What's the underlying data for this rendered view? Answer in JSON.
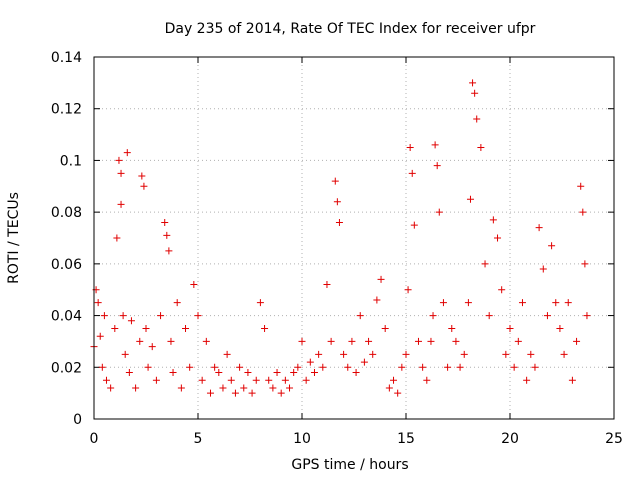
{
  "chart_data": {
    "type": "scatter",
    "title": "Day 235 of 2014, Rate Of TEC Index for receiver ufpr",
    "xlabel": "GPS time / hours",
    "ylabel": "ROTI / TECUs",
    "xlim": [
      0,
      25
    ],
    "ylim": [
      0,
      0.14
    ],
    "xticks": [
      0,
      5,
      10,
      15,
      20,
      25
    ],
    "yticks": [
      0,
      0.02,
      0.04,
      0.06,
      0.08,
      0.1,
      0.12,
      0.14
    ],
    "xtick_labels": [
      "0",
      "5",
      "10",
      "15",
      "20",
      "25"
    ],
    "ytick_labels": [
      "0",
      "0.02",
      "0.04",
      "0.06",
      "0.08",
      "0.1",
      "0.12",
      "0.14"
    ],
    "grid": true,
    "marker": "+",
    "color": "#e00000",
    "series": [
      {
        "name": "ROTI",
        "x": [
          0.0,
          0.1,
          0.2,
          0.3,
          0.4,
          0.5,
          0.6,
          0.8,
          1.0,
          1.1,
          1.2,
          1.3,
          1.3,
          1.4,
          1.5,
          1.6,
          1.7,
          1.8,
          2.0,
          2.2,
          2.3,
          2.4,
          2.5,
          2.6,
          2.8,
          3.0,
          3.2,
          3.4,
          3.5,
          3.6,
          3.7,
          3.8,
          4.0,
          4.2,
          4.4,
          4.6,
          4.8,
          5.0,
          5.2,
          5.4,
          5.6,
          5.8,
          6.0,
          6.2,
          6.4,
          6.6,
          6.8,
          7.0,
          7.2,
          7.4,
          7.6,
          7.8,
          8.0,
          8.2,
          8.4,
          8.6,
          8.8,
          9.0,
          9.2,
          9.4,
          9.6,
          9.8,
          10.0,
          10.2,
          10.4,
          10.6,
          10.8,
          11.0,
          11.2,
          11.4,
          11.6,
          11.7,
          11.8,
          12.0,
          12.2,
          12.4,
          12.6,
          12.8,
          13.0,
          13.2,
          13.4,
          13.6,
          13.8,
          14.0,
          14.2,
          14.4,
          14.6,
          14.8,
          15.0,
          15.1,
          15.2,
          15.3,
          15.4,
          15.6,
          15.8,
          16.0,
          16.2,
          16.3,
          16.4,
          16.5,
          16.6,
          16.8,
          17.0,
          17.2,
          17.4,
          17.6,
          17.8,
          18.0,
          18.1,
          18.2,
          18.3,
          18.4,
          18.6,
          18.8,
          19.0,
          19.2,
          19.4,
          19.6,
          19.8,
          20.0,
          20.2,
          20.4,
          20.6,
          20.8,
          21.0,
          21.2,
          21.4,
          21.6,
          21.8,
          22.0,
          22.2,
          22.4,
          22.6,
          22.8,
          23.0,
          23.2,
          23.4,
          23.5,
          23.6,
          23.7
        ],
        "y": [
          0.028,
          0.05,
          0.045,
          0.032,
          0.02,
          0.04,
          0.015,
          0.012,
          0.035,
          0.07,
          0.1,
          0.095,
          0.083,
          0.04,
          0.025,
          0.103,
          0.018,
          0.038,
          0.012,
          0.03,
          0.094,
          0.09,
          0.035,
          0.02,
          0.028,
          0.015,
          0.04,
          0.076,
          0.071,
          0.065,
          0.03,
          0.018,
          0.045,
          0.012,
          0.035,
          0.02,
          0.052,
          0.04,
          0.015,
          0.03,
          0.01,
          0.02,
          0.018,
          0.012,
          0.025,
          0.015,
          0.01,
          0.02,
          0.012,
          0.018,
          0.01,
          0.015,
          0.045,
          0.035,
          0.015,
          0.012,
          0.018,
          0.01,
          0.015,
          0.012,
          0.018,
          0.02,
          0.03,
          0.015,
          0.022,
          0.018,
          0.025,
          0.02,
          0.052,
          0.03,
          0.092,
          0.084,
          0.076,
          0.025,
          0.02,
          0.03,
          0.018,
          0.04,
          0.022,
          0.03,
          0.025,
          0.046,
          0.054,
          0.035,
          0.012,
          0.015,
          0.01,
          0.02,
          0.025,
          0.05,
          0.105,
          0.095,
          0.075,
          0.03,
          0.02,
          0.015,
          0.03,
          0.04,
          0.106,
          0.098,
          0.08,
          0.045,
          0.02,
          0.035,
          0.03,
          0.02,
          0.025,
          0.045,
          0.085,
          0.13,
          0.126,
          0.116,
          0.105,
          0.06,
          0.04,
          0.077,
          0.07,
          0.05,
          0.025,
          0.035,
          0.02,
          0.03,
          0.045,
          0.015,
          0.025,
          0.02,
          0.074,
          0.058,
          0.04,
          0.067,
          0.045,
          0.035,
          0.025,
          0.045,
          0.015,
          0.03,
          0.09,
          0.08,
          0.06,
          0.04
        ]
      }
    ]
  }
}
